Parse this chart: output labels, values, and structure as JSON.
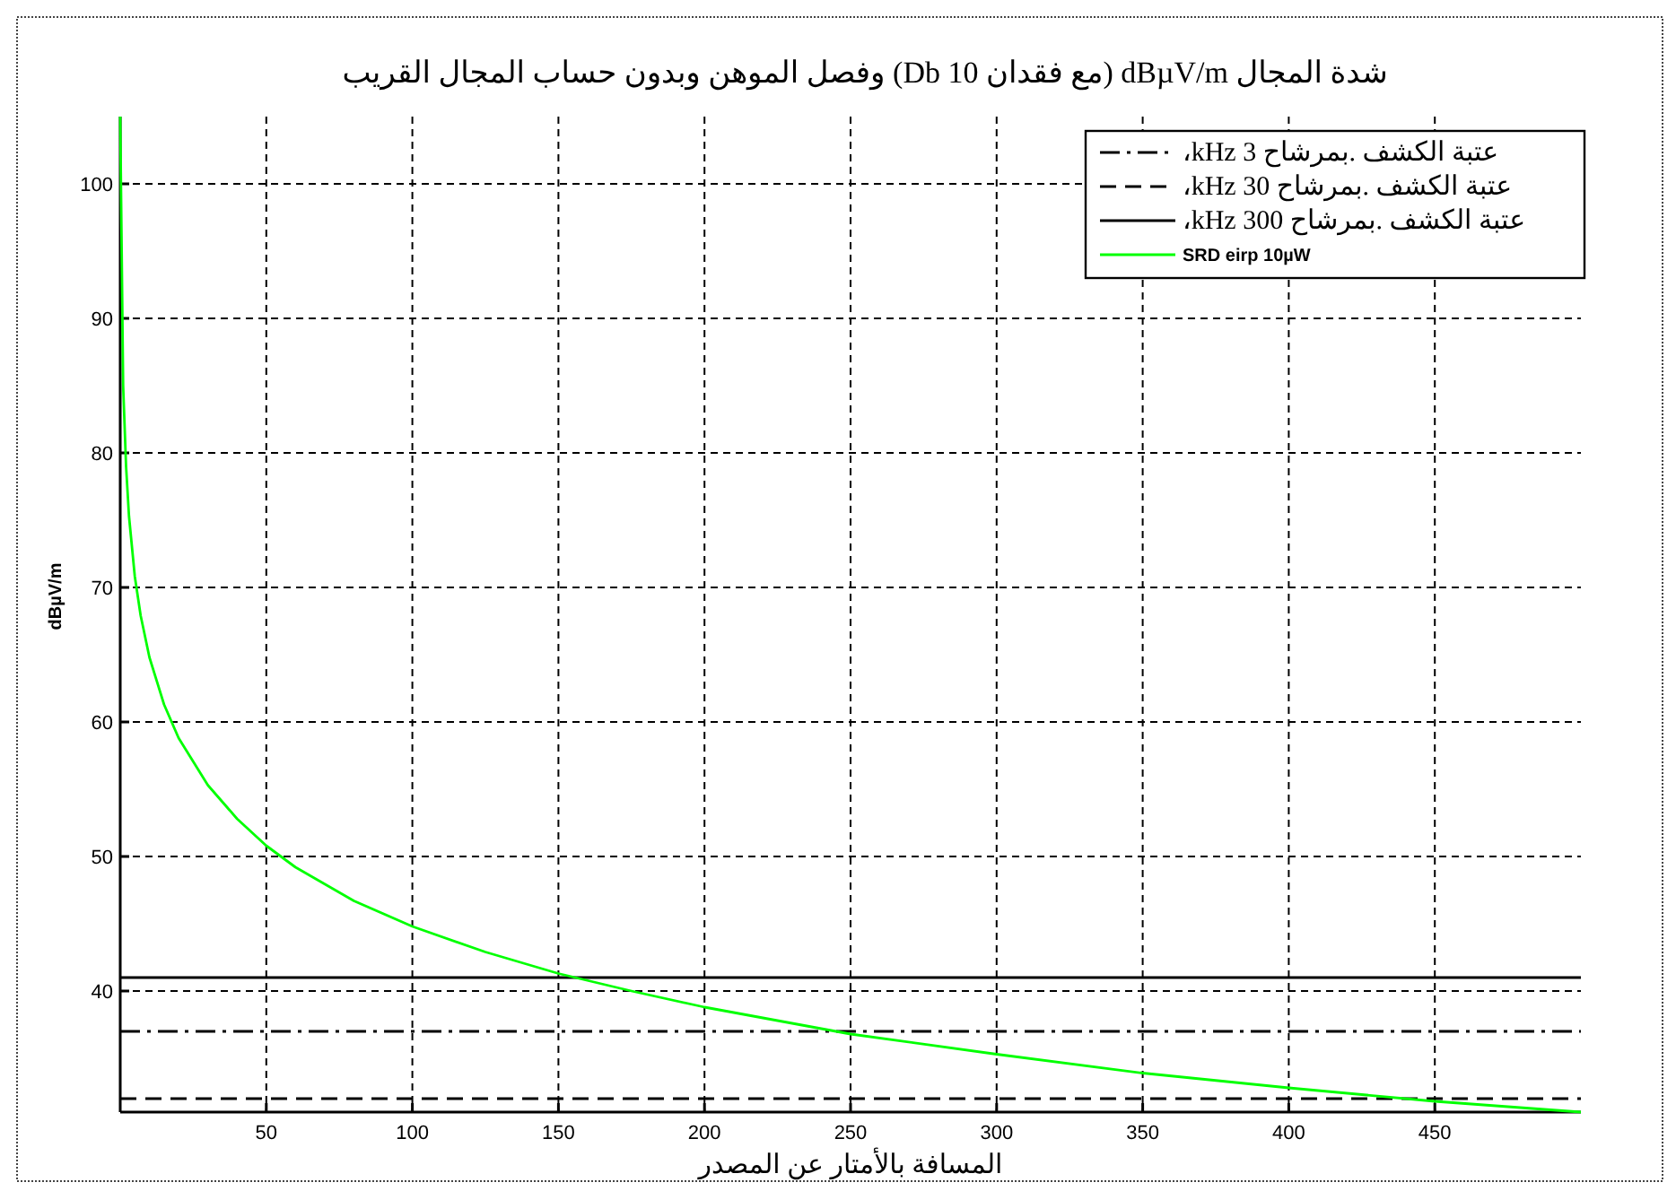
{
  "chart_data": {
    "type": "line",
    "title": "شدة المجال dBµV/m (مع فقدان 10 Db) وفصل الموهن وبدون حساب المجال القريب",
    "xlabel": "المسافة بالأمتار عن المصدر",
    "ylabel": "dBµV/m",
    "xlim": [
      0,
      500
    ],
    "ylim": [
      31,
      105
    ],
    "xticks": [
      50,
      100,
      150,
      200,
      250,
      300,
      350,
      400,
      450
    ],
    "yticks": [
      40,
      50,
      60,
      70,
      80,
      90,
      100
    ],
    "grid": true,
    "legend": "top right",
    "series": [
      {
        "name": "عتبة الكشف .بمرشاح 3 kHz،",
        "color": "#000000",
        "x": [
          0,
          500
        ],
        "values": [
          37,
          37
        ],
        "line_style": "dashdot"
      },
      {
        "name": "عتبة الكشف .بمرشاح 30 kHz،",
        "color": "#000000",
        "x": [
          0,
          500
        ],
        "values": [
          32,
          32
        ],
        "line_style": "dashed"
      },
      {
        "name": "عتبة الكشف .بمرشاح 300 kHz،",
        "color": "#000000",
        "x": [
          0,
          500
        ],
        "values": [
          41,
          41
        ],
        "line_style": "solid"
      },
      {
        "name": "SRD eirp 10µW",
        "color": "#00ff00",
        "x": [
          0,
          1,
          2,
          3,
          5,
          7,
          10,
          15,
          20,
          30,
          40,
          50,
          60,
          80,
          100,
          125,
          150,
          175,
          200,
          250,
          300,
          350,
          400,
          450,
          500
        ],
        "values": [
          105,
          85,
          79,
          75.3,
          70.8,
          67.9,
          64.8,
          61.3,
          58.8,
          55.3,
          52.8,
          50.8,
          49.2,
          46.7,
          44.8,
          42.9,
          41.3,
          40,
          38.8,
          36.8,
          35.3,
          33.9,
          32.8,
          31.8,
          31
        ],
        "line_style": "solid"
      }
    ]
  }
}
